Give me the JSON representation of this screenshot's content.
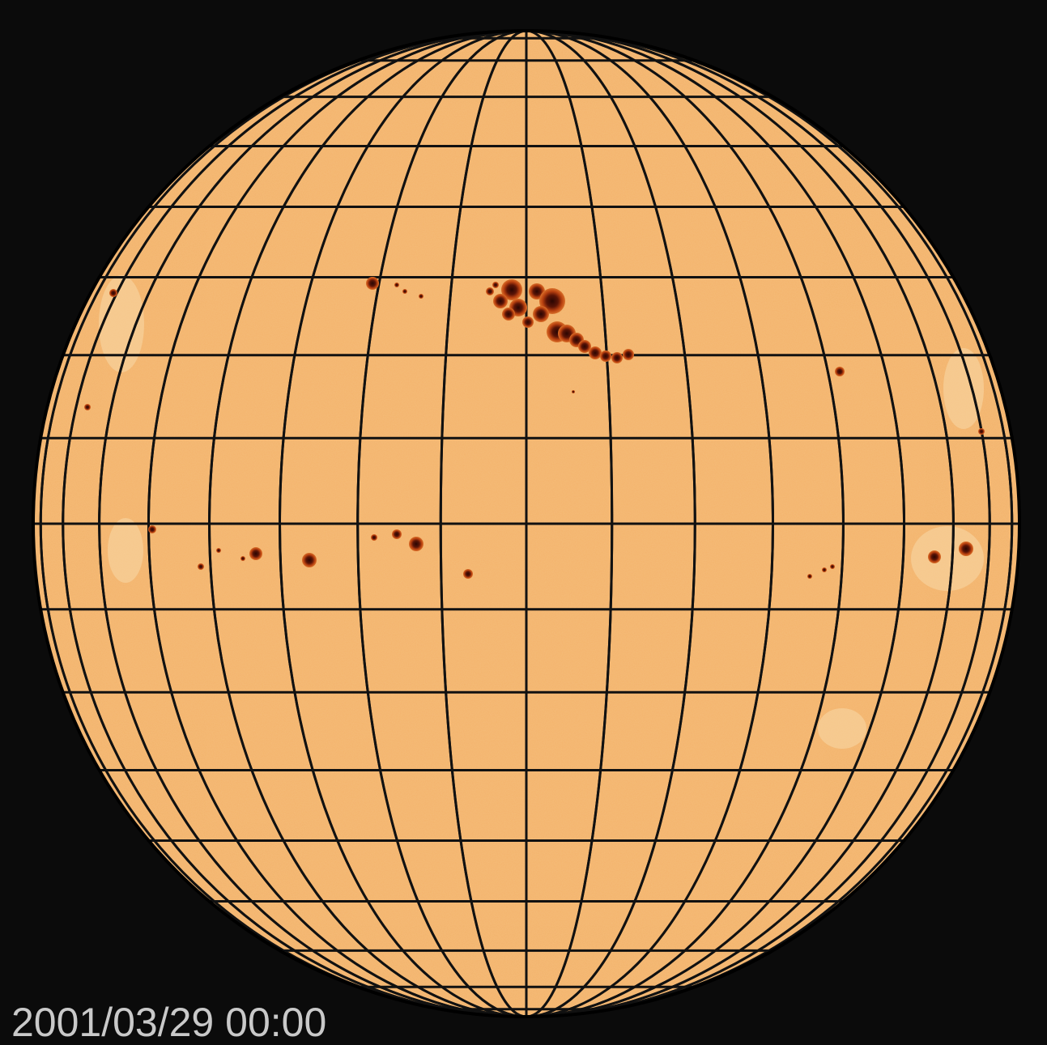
{
  "image": {
    "timestamp": "2001/03/29 00:00"
  },
  "colors": {
    "background": "#0b0b0b",
    "photosphere": "#f3b36b",
    "grid": "#111111",
    "sunspot_penumbra": "#b8400f",
    "sunspot_umbra": "#3a0a04",
    "timestamp_text": "#c9c9c9"
  },
  "grid": {
    "meridian_spacing_deg": 10,
    "parallel_spacing_deg": 10
  }
}
